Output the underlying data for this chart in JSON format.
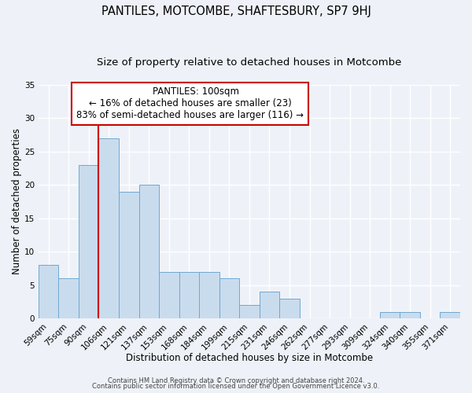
{
  "title": "PANTILES, MOTCOMBE, SHAFTESBURY, SP7 9HJ",
  "subtitle": "Size of property relative to detached houses in Motcombe",
  "xlabel": "Distribution of detached houses by size in Motcombe",
  "ylabel": "Number of detached properties",
  "bar_color": "#c9dcee",
  "bar_edge_color": "#6fa8d0",
  "categories": [
    "59sqm",
    "75sqm",
    "90sqm",
    "106sqm",
    "121sqm",
    "137sqm",
    "153sqm",
    "168sqm",
    "184sqm",
    "199sqm",
    "215sqm",
    "231sqm",
    "246sqm",
    "262sqm",
    "277sqm",
    "293sqm",
    "309sqm",
    "324sqm",
    "340sqm",
    "355sqm",
    "371sqm"
  ],
  "values": [
    8,
    6,
    23,
    27,
    19,
    20,
    7,
    7,
    7,
    6,
    2,
    4,
    3,
    0,
    0,
    0,
    0,
    1,
    1,
    0,
    1
  ],
  "ylim": [
    0,
    35
  ],
  "yticks": [
    0,
    5,
    10,
    15,
    20,
    25,
    30,
    35
  ],
  "vline_color": "#cc0000",
  "vline_index": 2.5,
  "annotation_title": "PANTILES: 100sqm",
  "annotation_line1": "← 16% of detached houses are smaller (23)",
  "annotation_line2": "83% of semi-detached houses are larger (116) →",
  "annotation_box_color": "#ffffff",
  "annotation_box_edge": "#cc0000",
  "footer1": "Contains HM Land Registry data © Crown copyright and database right 2024.",
  "footer2": "Contains public sector information licensed under the Open Government Licence v3.0.",
  "background_color": "#eef2f8",
  "grid_color": "#ffffff",
  "title_fontsize": 10.5,
  "subtitle_fontsize": 9.5,
  "axis_label_fontsize": 8.5,
  "tick_fontsize": 7.5,
  "footer_fontsize": 6.0,
  "annotation_fontsize": 8.5
}
